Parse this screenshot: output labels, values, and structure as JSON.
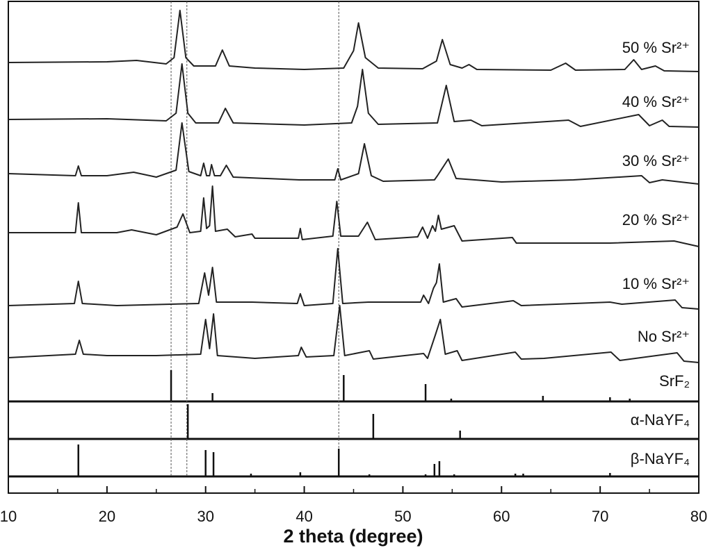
{
  "chart_data": [
    {
      "type": "line",
      "xlabel": "2 theta (degree)",
      "xlim": [
        10,
        80
      ],
      "xticks": [
        10,
        20,
        30,
        40,
        50,
        60,
        70,
        80
      ],
      "xminor_ticks": [
        15,
        25,
        35,
        45,
        55,
        65,
        75
      ],
      "reference_lines": [
        26.5,
        28.1,
        43.5
      ],
      "color": "#222222",
      "series": [
        {
          "name": "50 % Sr²⁺",
          "x": [
            10,
            20,
            23,
            26,
            26.8,
            27.4,
            28.0,
            28.8,
            31.0,
            31.7,
            32.4,
            35,
            40,
            44,
            45.0,
            45.5,
            46.2,
            47.5,
            52,
            53.4,
            54.0,
            54.8,
            56,
            56.7,
            57.5,
            65,
            66.5,
            67.5,
            72.5,
            73.4,
            74.2,
            75.6,
            76.5,
            80
          ],
          "values": [
            13,
            14,
            16,
            11,
            20,
            88,
            20,
            8,
            8,
            31,
            8,
            5,
            3,
            5,
            30,
            70,
            20,
            5,
            4,
            15,
            46,
            10,
            5,
            10,
            3,
            2,
            12,
            2,
            3,
            17,
            3,
            8,
            1,
            0
          ]
        },
        {
          "name": "40 % Sr²⁺",
          "x": [
            10,
            20,
            26,
            27.0,
            27.6,
            28.2,
            29,
            31.3,
            32.0,
            32.8,
            40,
            44.8,
            45.4,
            45.9,
            46.5,
            47.5,
            53.5,
            54.4,
            55.2,
            56.9,
            58,
            66.8,
            68,
            73.9,
            75,
            76.3,
            77,
            80
          ],
          "values": [
            11,
            12,
            9,
            20,
            91,
            20,
            6,
            6,
            27,
            6,
            3,
            6,
            30,
            83,
            20,
            4,
            6,
            60,
            8,
            10,
            2,
            10,
            1,
            18,
            2,
            10,
            1,
            0
          ]
        },
        {
          "name": "30 % Sr²⁺",
          "x": [
            10,
            16.8,
            17.1,
            17.4,
            20,
            22.7,
            25,
            27.0,
            27.6,
            28.3,
            29.5,
            29.8,
            30.1,
            30.4,
            30.6,
            30.9,
            31.5,
            32.1,
            32.8,
            39.5,
            43.1,
            43.4,
            43.7,
            45.5,
            46.1,
            46.8,
            48,
            53.2,
            53.5,
            54.6,
            55.4,
            57.3,
            60,
            67.3,
            74.2,
            75,
            76.3,
            80
          ],
          "values": [
            15,
            12,
            26,
            12,
            12,
            17,
            10,
            20,
            88,
            18,
            12,
            30,
            12,
            12,
            28,
            12,
            12,
            27,
            10,
            6,
            6,
            22,
            6,
            15,
            58,
            12,
            4,
            6,
            12,
            36,
            8,
            6,
            3,
            6,
            12,
            2,
            6,
            0
          ]
        },
        {
          "name": "20 % Sr²⁺",
          "x": [
            10,
            16.8,
            17.1,
            17.4,
            21,
            22.5,
            25,
            27.1,
            27.7,
            28.4,
            29.5,
            29.8,
            30.1,
            30.4,
            30.7,
            31.0,
            32.2,
            33,
            34.7,
            35,
            39.4,
            39.6,
            39.8,
            42.9,
            43.3,
            43.7,
            45.5,
            46.4,
            47.2,
            51.5,
            52.0,
            52.5,
            53.0,
            53.3,
            53.6,
            53.9,
            55.2,
            56,
            61.1,
            61.5,
            64.1,
            71,
            77.5,
            80
          ],
          "values": [
            20,
            20,
            63,
            20,
            20,
            24,
            17,
            28,
            47,
            20,
            22,
            70,
            26,
            30,
            87,
            22,
            25,
            14,
            18,
            12,
            12,
            26,
            10,
            15,
            65,
            15,
            15,
            35,
            10,
            14,
            28,
            12,
            30,
            22,
            45,
            25,
            30,
            8,
            13,
            5,
            5,
            5,
            8,
            0
          ]
        },
        {
          "name": "10 % Sr²⁺",
          "x": [
            10,
            16.7,
            17.1,
            17.5,
            21,
            29.3,
            29.9,
            30.3,
            30.7,
            31.1,
            34.7,
            39.3,
            39.6,
            40,
            42.9,
            43.4,
            43.9,
            46.5,
            51.8,
            52.1,
            52.6,
            53.1,
            53.4,
            53.7,
            54.1,
            55.4,
            56,
            61.2,
            62,
            71,
            72.2,
            77.6,
            78.3,
            80
          ],
          "values": [
            5,
            8,
            40,
            8,
            5,
            8,
            52,
            20,
            60,
            10,
            10,
            8,
            22,
            5,
            8,
            87,
            8,
            10,
            10,
            20,
            8,
            30,
            38,
            65,
            10,
            15,
            3,
            12,
            5,
            10,
            7,
            13,
            2,
            0
          ]
        },
        {
          "name": "No  Sr²⁺",
          "x": [
            10,
            16.8,
            17.2,
            17.6,
            20,
            25,
            29.5,
            30.0,
            30.4,
            30.8,
            31.2,
            35,
            39.4,
            39.7,
            40.2,
            43.0,
            43.6,
            44.1,
            46.6,
            47,
            52.1,
            52.5,
            53.3,
            53.8,
            54.3,
            55.5,
            56,
            61.4,
            62,
            64.3,
            71.1,
            72,
            77.8,
            78.5,
            80
          ],
          "values": [
            7,
            12,
            32,
            12,
            10,
            10,
            12,
            62,
            20,
            70,
            10,
            6,
            10,
            22,
            8,
            10,
            82,
            10,
            17,
            5,
            13,
            6,
            40,
            62,
            12,
            17,
            3,
            15,
            5,
            6,
            15,
            3,
            14,
            2,
            0
          ]
        }
      ]
    },
    {
      "type": "stem",
      "name": "SrF₂",
      "color": "#111111",
      "x": [
        26.5,
        30.7,
        44.0,
        52.3,
        54.9,
        64.2,
        71.0,
        73.0
      ],
      "values": [
        45,
        12,
        38,
        25,
        4,
        8,
        6,
        4
      ]
    },
    {
      "type": "stem",
      "name": "α-NaYF₄",
      "color": "#111111",
      "x": [
        28.2,
        47.0,
        55.8
      ],
      "values": [
        50,
        36,
        12
      ]
    },
    {
      "type": "stem",
      "name": "β-NaYF₄",
      "color": "#111111",
      "x": [
        17.1,
        30.0,
        30.8,
        34.6,
        39.6,
        43.5,
        46.6,
        52.3,
        53.2,
        53.7,
        55.2,
        61.4,
        62.2,
        71.0
      ],
      "values": [
        46,
        38,
        35,
        4,
        6,
        40,
        3,
        3,
        18,
        22,
        3,
        4,
        4,
        5
      ]
    }
  ]
}
